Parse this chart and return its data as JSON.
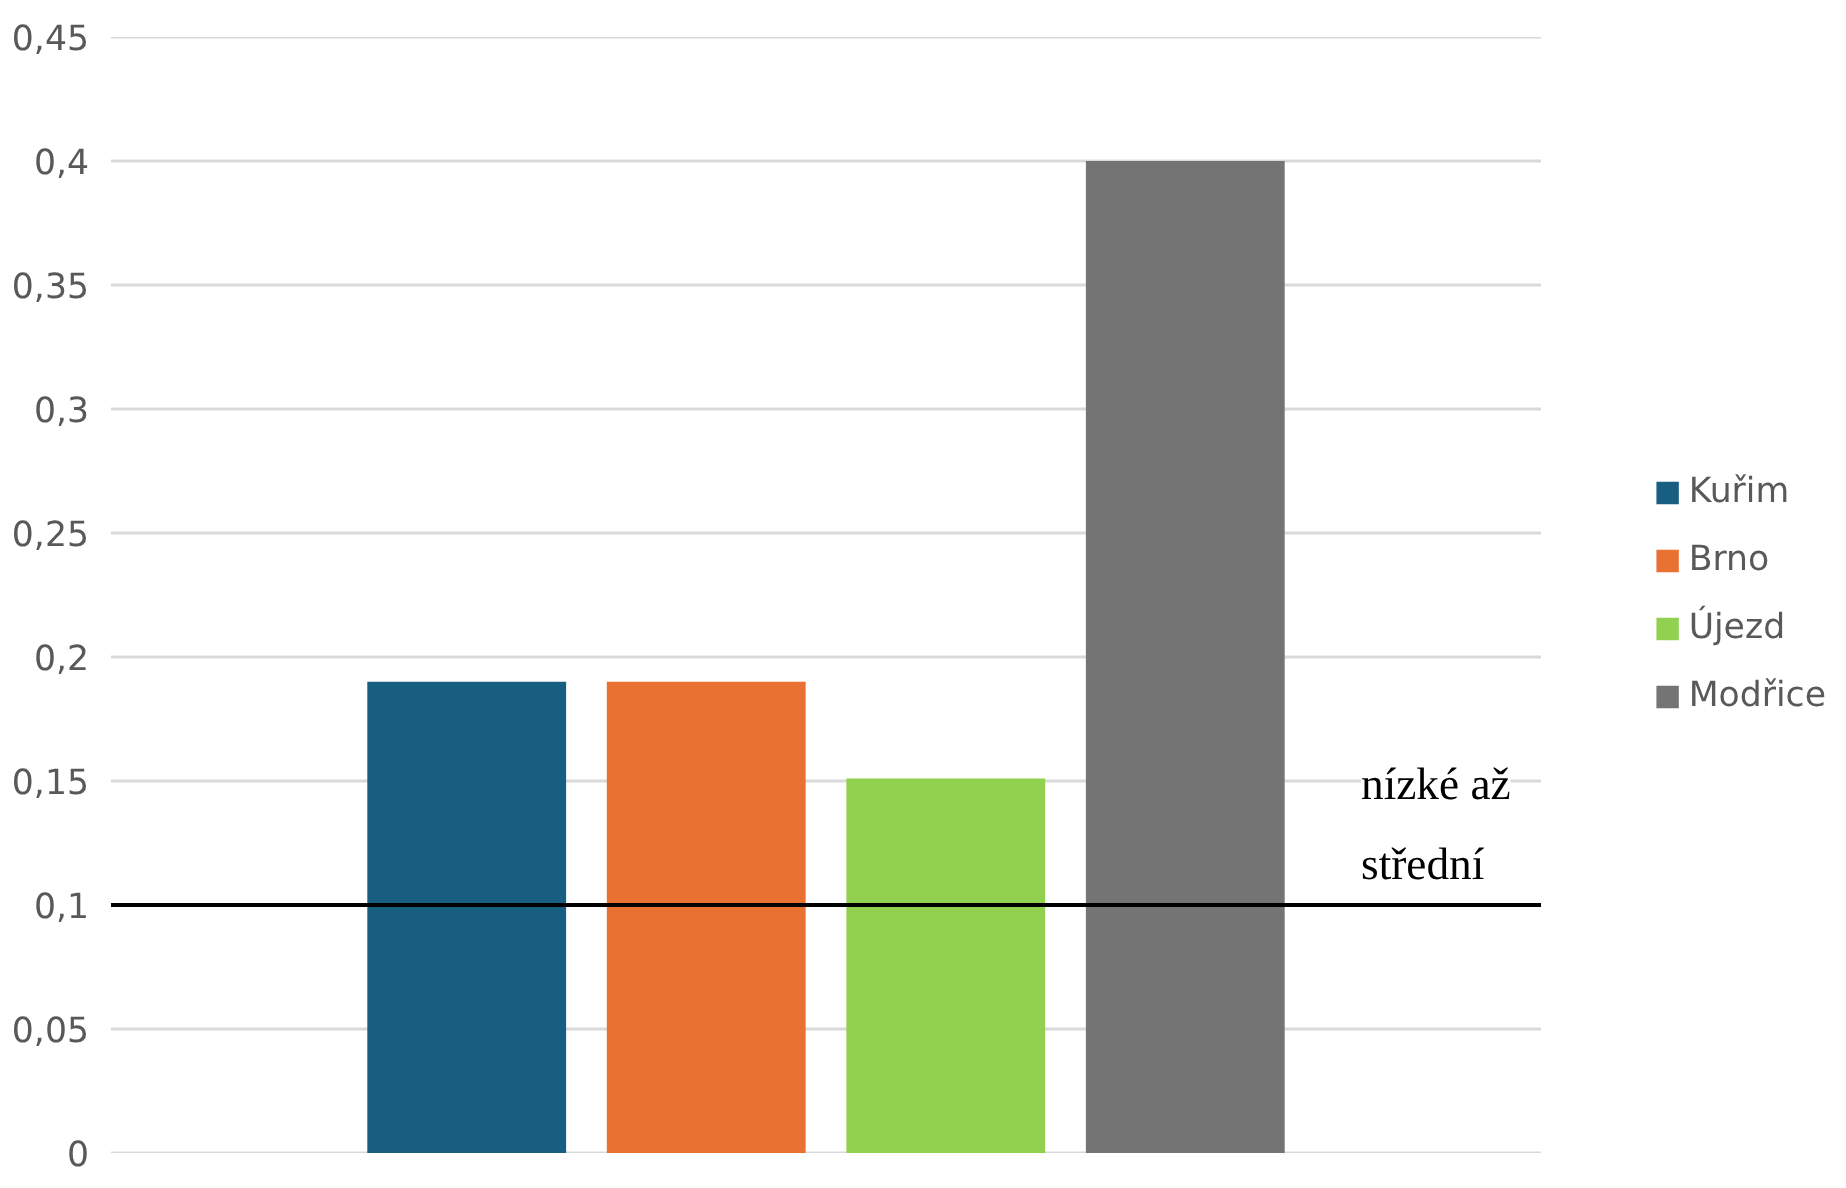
{
  "chart_data": {
    "type": "bar",
    "categories": [
      null
    ],
    "series": [
      {
        "name": "Kuřim",
        "color": "#175e81",
        "values": [
          0.19
        ]
      },
      {
        "name": "Brno",
        "color": "#e97132",
        "values": [
          0.19
        ]
      },
      {
        "name": "Újezd",
        "color": "#92d050",
        "values": [
          0.151
        ]
      },
      {
        "name": "Modřice",
        "color": "#747474",
        "values": [
          0.4
        ]
      }
    ],
    "ylim": [
      0,
      0.45
    ],
    "yticks": [
      {
        "value": 0,
        "label": "0"
      },
      {
        "value": 0.05,
        "label": "0,05"
      },
      {
        "value": 0.1,
        "label": "0,1"
      },
      {
        "value": 0.15,
        "label": "0,15"
      },
      {
        "value": 0.2,
        "label": "0,2"
      },
      {
        "value": 0.25,
        "label": "0,25"
      },
      {
        "value": 0.3,
        "label": "0,3"
      },
      {
        "value": 0.35,
        "label": "0,35"
      },
      {
        "value": 0.4,
        "label": "0,4"
      },
      {
        "value": 0.45,
        "label": "0,45"
      }
    ],
    "ref_lines": [
      {
        "axis": "y",
        "value": 0.1,
        "label": "nízké až\nstřední",
        "color": "#000000"
      }
    ],
    "grid": "y",
    "legend": "right"
  }
}
